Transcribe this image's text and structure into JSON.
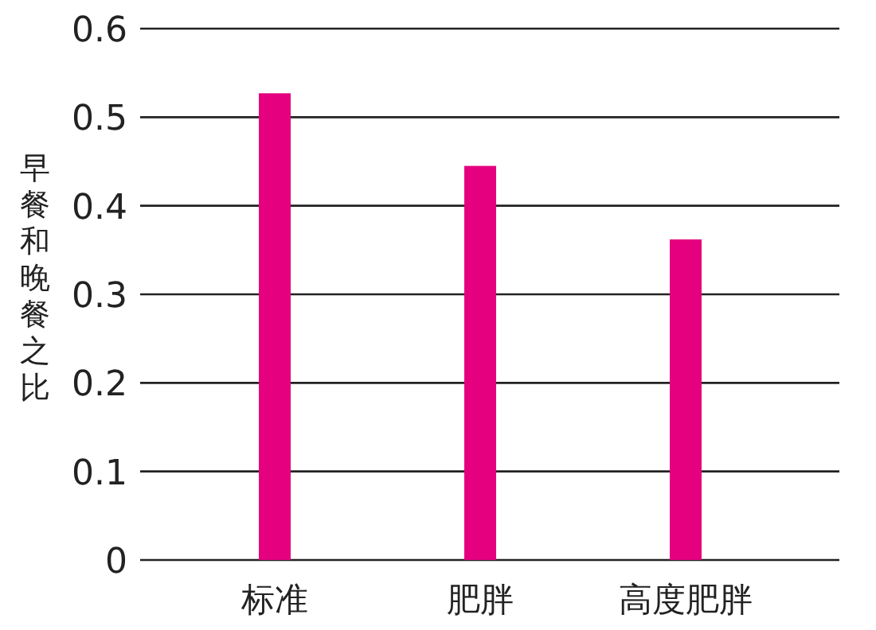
{
  "chart_data": {
    "type": "bar",
    "ylabel": "早餐和晚餐之比",
    "categories": [
      "标准",
      "肥胖",
      "高度肥胖"
    ],
    "values": [
      0.527,
      0.445,
      0.362
    ],
    "color": "#e4007f",
    "ylim": [
      0,
      0.6
    ],
    "yticks": [
      0,
      0.1,
      0.2,
      0.3,
      0.4,
      0.5,
      0.6
    ],
    "grid": "y"
  }
}
